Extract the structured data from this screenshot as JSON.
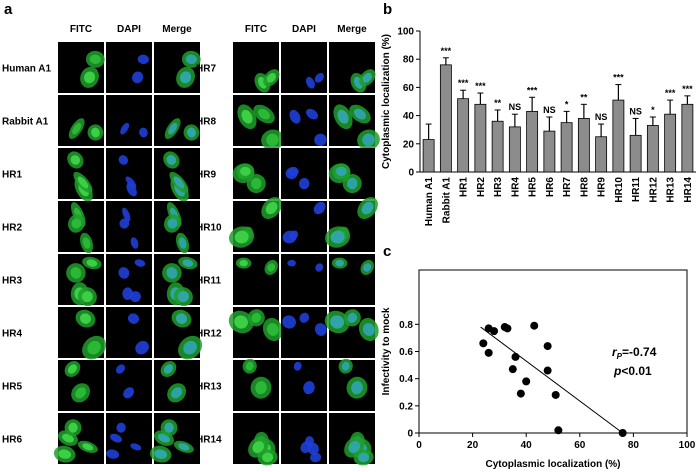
{
  "panel_a": {
    "label": "a",
    "columns": [
      "FITC",
      "DAPI",
      "Merge"
    ],
    "left_rows": [
      "Human A1",
      "Rabbit A1",
      "HR1",
      "HR2",
      "HR3",
      "HR4",
      "HR5",
      "HR6"
    ],
    "right_rows": [
      "HR7",
      "HR8",
      "HR9",
      "HR10",
      "HR11",
      "HR12",
      "HR13",
      "HR14"
    ]
  },
  "chart_data": [
    {
      "type": "bar",
      "label": "b",
      "y_label": "Cytoplasmic localization (%)",
      "categories": [
        "Human A1",
        "Rabbit A1",
        "HR1",
        "HR2",
        "HR3",
        "HR4",
        "HR5",
        "HR6",
        "HR7",
        "HR8",
        "HR9",
        "HR10",
        "HR11",
        "HR12",
        "HR13",
        "HR14"
      ],
      "values": [
        23,
        76,
        52,
        48,
        36,
        32,
        43,
        29,
        35,
        38,
        25,
        51,
        26,
        33,
        41,
        48
      ],
      "errors": [
        11,
        5,
        6,
        8,
        8,
        9,
        10,
        10,
        8,
        10,
        9,
        11,
        12,
        6,
        10,
        6
      ],
      "significance": [
        null,
        "***",
        "***",
        "***",
        "**",
        "NS",
        "***",
        "NS",
        "*",
        "**",
        "NS",
        "***",
        "NS",
        "*",
        "***",
        "***"
      ],
      "color": "#8c8c8c",
      "ylim": [
        0,
        100
      ],
      "yticks": [
        0,
        20,
        40,
        60,
        80,
        100
      ]
    },
    {
      "type": "scatter",
      "label": "c",
      "x_label": "Cytoplasmic localization (%)",
      "y_label": "Infectivity to mock",
      "x": [
        24,
        26,
        26,
        28,
        32,
        33,
        35,
        36,
        38,
        40,
        43,
        48,
        48,
        51,
        52,
        76
      ],
      "y": [
        0.66,
        0.59,
        0.77,
        0.75,
        0.78,
        0.77,
        0.47,
        0.56,
        0.29,
        0.38,
        0.79,
        0.64,
        0.46,
        0.28,
        0.02,
        0
      ],
      "fit_line": {
        "x": [
          23,
          76
        ],
        "y": [
          0.78,
          0
        ]
      },
      "annotation": {
        "r": "r",
        "r_sub": "P",
        "r_value": "=-0.74",
        "p": "p",
        "p_value": "<0.01"
      },
      "color": "#000000",
      "xlim": [
        0,
        100
      ],
      "ylim": [
        0,
        1.2
      ],
      "xticks": [
        0,
        20,
        40,
        60,
        80,
        100
      ],
      "yticks": [
        0,
        0.2,
        0.4,
        0.6,
        0.8
      ]
    }
  ]
}
